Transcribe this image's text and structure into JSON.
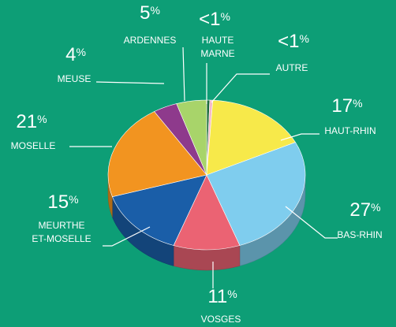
{
  "chart_data": {
    "type": "pie",
    "categories": [
      "HAUTE MARNE",
      "AUTRE",
      "HAUT-RHIN",
      "BAS-RHIN",
      "VOSGES",
      "MEURTHE ET-MOSELLE",
      "MOSELLE",
      "MEUSE",
      "ARDENNES"
    ],
    "values": [
      0.5,
      0.5,
      17,
      27,
      11,
      15,
      21,
      4,
      5
    ],
    "value_labels": [
      "<1%",
      "<1%",
      "17%",
      "27%",
      "11%",
      "15%",
      "21%",
      "4%",
      "5%"
    ],
    "colors": [
      "#1e6b3c",
      "#f4b8c8",
      "#f7e94a",
      "#7fcdee",
      "#eb6373",
      "#1a5ea8",
      "#f29420",
      "#8e3a8c",
      "#a8d46a"
    ]
  }
}
